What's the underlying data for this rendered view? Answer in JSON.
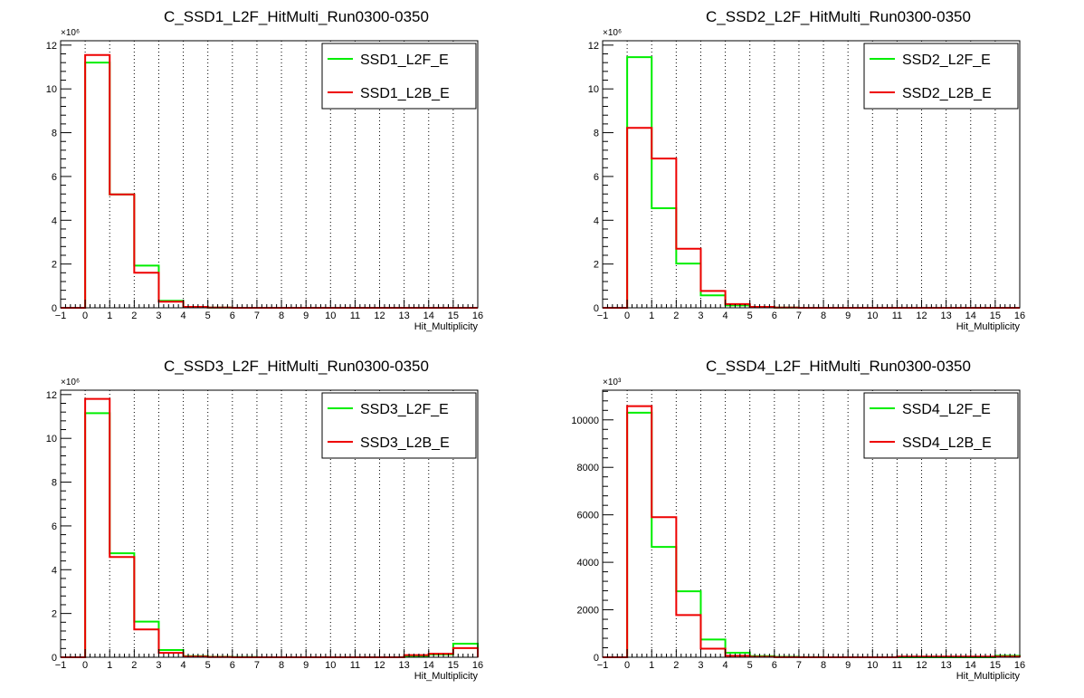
{
  "chart_data": [
    {
      "type": "histogram",
      "title": "C_SSD1_L2F_HitMulti_Run0300-0350",
      "xlabel": "Hit_Multiplicity",
      "ylabel": "",
      "y_multiplier": "×10⁶",
      "xlim": [
        -1,
        16
      ],
      "ylim": [
        0,
        12.2
      ],
      "x_ticks": [
        "−1",
        "0",
        "1",
        "2",
        "3",
        "4",
        "5",
        "6",
        "7",
        "8",
        "9",
        "10",
        "11",
        "12",
        "13",
        "14",
        "15",
        "16"
      ],
      "y_ticks": [
        "0",
        "2",
        "4",
        "6",
        "8",
        "10",
        "12"
      ],
      "grid": "vertical-dotted",
      "legend_position": "top-right",
      "bin_edges": [
        -1,
        0,
        1,
        2,
        3,
        4,
        5,
        6,
        7,
        8,
        9,
        10,
        11,
        12,
        13,
        14,
        15,
        16
      ],
      "series": [
        {
          "name": "SSD1_L2F_E",
          "color": "#00ee00",
          "values": [
            0,
            11.2,
            5.18,
            1.93,
            0.32,
            0.04,
            0.01,
            0,
            0,
            0,
            0,
            0,
            0,
            0,
            0,
            0,
            0
          ]
        },
        {
          "name": "SSD1_L2B_E",
          "color": "#ee0000",
          "values": [
            0,
            11.55,
            5.18,
            1.6,
            0.28,
            0.04,
            0.01,
            0,
            0,
            0,
            0,
            0,
            0,
            0,
            0,
            0,
            0
          ]
        }
      ]
    },
    {
      "type": "histogram",
      "title": "C_SSD2_L2F_HitMulti_Run0300-0350",
      "xlabel": "Hit_Multiplicity",
      "ylabel": "",
      "y_multiplier": "×10⁶",
      "xlim": [
        -1,
        16
      ],
      "ylim": [
        0,
        12.2
      ],
      "x_ticks": [
        "−1",
        "0",
        "1",
        "2",
        "3",
        "4",
        "5",
        "6",
        "7",
        "8",
        "9",
        "10",
        "11",
        "12",
        "13",
        "14",
        "15",
        "16"
      ],
      "y_ticks": [
        "0",
        "2",
        "4",
        "6",
        "8",
        "10",
        "12"
      ],
      "grid": "vertical-dotted",
      "legend_position": "top-right",
      "bin_edges": [
        -1,
        0,
        1,
        2,
        3,
        4,
        5,
        6,
        7,
        8,
        9,
        10,
        11,
        12,
        13,
        14,
        15,
        16
      ],
      "series": [
        {
          "name": "SSD2_L2F_E",
          "color": "#00ee00",
          "values": [
            0,
            11.45,
            4.55,
            2.02,
            0.57,
            0.11,
            0.03,
            0.01,
            0,
            0,
            0,
            0,
            0,
            0,
            0,
            0,
            0
          ]
        },
        {
          "name": "SSD2_L2B_E",
          "color": "#ee0000",
          "values": [
            0,
            8.22,
            6.82,
            2.7,
            0.77,
            0.17,
            0.04,
            0.01,
            0,
            0,
            0,
            0,
            0,
            0,
            0,
            0,
            0
          ]
        }
      ]
    },
    {
      "type": "histogram",
      "title": "C_SSD3_L2F_HitMulti_Run0300-0350",
      "xlabel": "Hit_Multiplicity",
      "ylabel": "",
      "y_multiplier": "×10⁶",
      "xlim": [
        -1,
        16
      ],
      "ylim": [
        0,
        12.2
      ],
      "x_ticks": [
        "−1",
        "0",
        "1",
        "2",
        "3",
        "4",
        "5",
        "6",
        "7",
        "8",
        "9",
        "10",
        "11",
        "12",
        "13",
        "14",
        "15",
        "16"
      ],
      "y_ticks": [
        "0",
        "2",
        "4",
        "6",
        "8",
        "10",
        "12"
      ],
      "grid": "vertical-dotted",
      "legend_position": "top-right",
      "bin_edges": [
        -1,
        0,
        1,
        2,
        3,
        4,
        5,
        6,
        7,
        8,
        9,
        10,
        11,
        12,
        13,
        14,
        15,
        16
      ],
      "series": [
        {
          "name": "SSD3_L2F_E",
          "color": "#00ee00",
          "values": [
            0,
            11.15,
            4.75,
            1.63,
            0.33,
            0.05,
            0.02,
            0.01,
            0,
            0,
            0,
            0,
            0,
            0,
            0.05,
            0.13,
            0.62
          ]
        },
        {
          "name": "SSD3_L2B_E",
          "color": "#ee0000",
          "values": [
            0,
            11.8,
            4.58,
            1.27,
            0.2,
            0.03,
            0.01,
            0,
            0,
            0,
            0,
            0,
            0,
            0,
            0.1,
            0.16,
            0.42
          ]
        }
      ]
    },
    {
      "type": "histogram",
      "title": "C_SSD4_L2F_HitMulti_Run0300-0350",
      "xlabel": "Hit_Multiplicity",
      "ylabel": "",
      "y_multiplier": "×10³",
      "xlim": [
        -1,
        16
      ],
      "ylim": [
        0,
        11250
      ],
      "x_ticks": [
        "−1",
        "0",
        "1",
        "2",
        "3",
        "4",
        "5",
        "6",
        "7",
        "8",
        "9",
        "10",
        "11",
        "12",
        "13",
        "14",
        "15",
        "16"
      ],
      "y_ticks": [
        "0",
        "2000",
        "4000",
        "6000",
        "8000",
        "10000"
      ],
      "grid": "vertical-dotted",
      "legend_position": "top-right",
      "bin_edges": [
        -1,
        0,
        1,
        2,
        3,
        4,
        5,
        6,
        7,
        8,
        9,
        10,
        11,
        12,
        13,
        14,
        15,
        16
      ],
      "series": [
        {
          "name": "SSD4_L2F_E",
          "color": "#00ee00",
          "values": [
            0,
            10300,
            4650,
            2780,
            750,
            190,
            50,
            20,
            5,
            0,
            0,
            0,
            0,
            0,
            0,
            0,
            60
          ]
        },
        {
          "name": "SSD4_L2B_E",
          "color": "#ee0000",
          "values": [
            0,
            10580,
            5900,
            1780,
            360,
            60,
            20,
            5,
            0,
            0,
            0,
            0,
            30,
            30,
            30,
            30,
            30
          ]
        }
      ]
    }
  ]
}
